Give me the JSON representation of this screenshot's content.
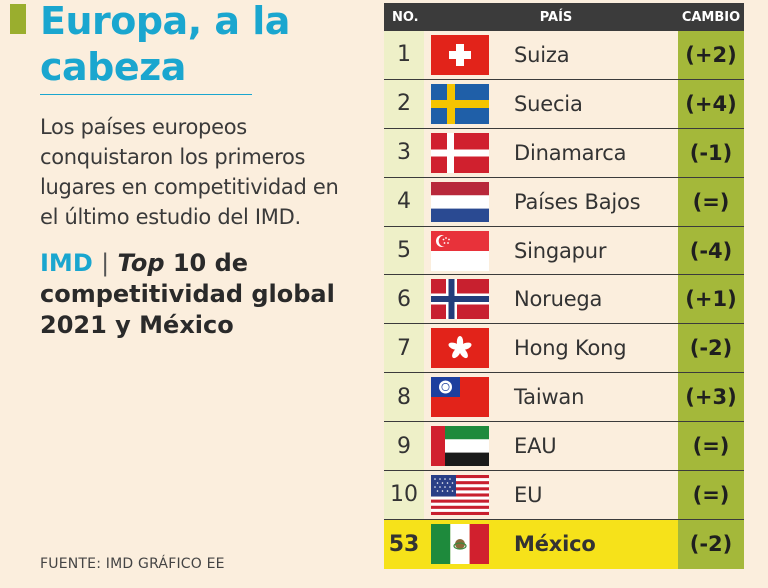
{
  "header": {
    "title": "Europa, a la cabeza",
    "intro": "Los países europeos conquistaron los primeros lugares en competitividad en el último estudio del IMD.",
    "sub_imd": "IMD",
    "sub_sep": "|",
    "sub_top": "Top",
    "sub_rest": "10 de competitividad global 2021 y México"
  },
  "source": "FUENTE: IMD GRÁFICO EE",
  "table": {
    "col_no": "NO.",
    "col_pais": "PAÍS",
    "col_cambio": "CAMBIO",
    "rows": [
      {
        "no": "1",
        "country": "Suiza",
        "change": "(+2)",
        "flag": "swiss-flag-icon"
      },
      {
        "no": "2",
        "country": "Suecia",
        "change": "(+4)",
        "flag": "swedish-flag-icon"
      },
      {
        "no": "3",
        "country": "Dinamarca",
        "change": "(-1)",
        "flag": "danish-flag-icon"
      },
      {
        "no": "4",
        "country": "Países Bajos",
        "change": "(=)",
        "flag": "dutch-flag-icon"
      },
      {
        "no": "5",
        "country": "Singapur",
        "change": "(-4)",
        "flag": "singapore-flag-icon"
      },
      {
        "no": "6",
        "country": "Noruega",
        "change": "(+1)",
        "flag": "norwegian-flag-icon"
      },
      {
        "no": "7",
        "country": "Hong Kong",
        "change": "(-2)",
        "flag": "hong-kong-flag-icon"
      },
      {
        "no": "8",
        "country": "Taiwan",
        "change": "(+3)",
        "flag": "taiwan-flag-icon"
      },
      {
        "no": "9",
        "country": "EAU",
        "change": "(=)",
        "flag": "uae-flag-icon"
      },
      {
        "no": "10",
        "country": "EU",
        "change": "(=)",
        "flag": "usa-flag-icon"
      },
      {
        "no": "53",
        "country": "México",
        "change": "(-2)",
        "flag": "mexico-flag-icon"
      }
    ]
  },
  "colors": {
    "accent": "#1aa6cf",
    "green": "#a4b83a",
    "highlight": "#f6e21a",
    "header_bg": "#3b3b3b"
  }
}
